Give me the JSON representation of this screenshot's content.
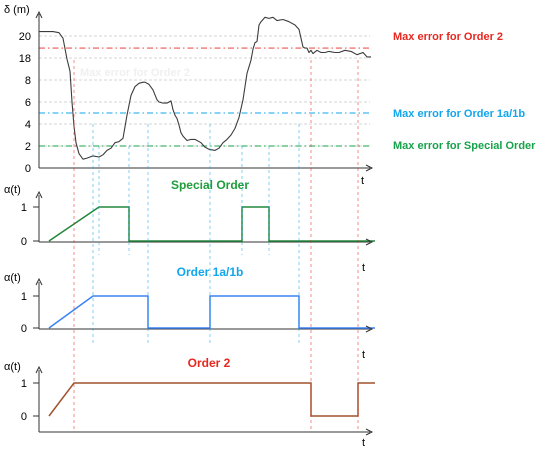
{
  "chart_data": [
    {
      "type": "line",
      "ylabel": "δ (m)",
      "xlabel": "t",
      "yticks": [
        0,
        2,
        4,
        6,
        8,
        18,
        20
      ],
      "ylim": [
        0,
        22
      ],
      "x": [
        0,
        14,
        20,
        24,
        28,
        31,
        33,
        35,
        37,
        40,
        44,
        48,
        54,
        60,
        64,
        68,
        72,
        76,
        80,
        84,
        88,
        92,
        96,
        100,
        104,
        106,
        110,
        114,
        118,
        120,
        124,
        128,
        132,
        134,
        136,
        138,
        140,
        142,
        144,
        148,
        152,
        156,
        162,
        166,
        170,
        176,
        180,
        184,
        188,
        192,
        196,
        200,
        204,
        208,
        212,
        214,
        216,
        218,
        220,
        222,
        226,
        230,
        234,
        238,
        244,
        250,
        256,
        260,
        262,
        264,
        266,
        268,
        270,
        272,
        274,
        278,
        282,
        286,
        290,
        296,
        300,
        306,
        312,
        318,
        324,
        328,
        332
      ],
      "y": [
        20.4,
        20.4,
        20.3,
        19.8,
        17.5,
        12.0,
        6.0,
        3.8,
        2.3,
        1.3,
        0.8,
        0.9,
        1.1,
        1.0,
        1.2,
        1.6,
        1.8,
        2.3,
        2.4,
        2.7,
        4.8,
        6.6,
        7.4,
        7.7,
        7.8,
        7.8,
        7.6,
        7.1,
        6.2,
        6.0,
        5.9,
        5.9,
        6.1,
        5.3,
        4.8,
        4.5,
        3.9,
        3.2,
        2.9,
        2.5,
        2.6,
        2.6,
        2.3,
        1.9,
        1.7,
        1.6,
        1.8,
        2.3,
        2.6,
        3.0,
        3.6,
        4.6,
        6.2,
        11.0,
        17.0,
        18.8,
        19.4,
        19.5,
        21.0,
        21.3,
        21.7,
        21.6,
        21.7,
        21.4,
        21.5,
        21.3,
        21.0,
        20.6,
        19.8,
        19.0,
        18.9,
        18.9,
        18.5,
        18.7,
        18.4,
        18.7,
        18.5,
        18.5,
        18.6,
        18.5,
        18.5,
        18.7,
        18.6,
        18.3,
        18.5,
        18.1,
        18.1
      ],
      "thresholds": [
        {
          "name": "Max error for Order 2",
          "value": 18.9,
          "color": "#e8271f"
        },
        {
          "name": "Max error for Order 1a/1b",
          "value": 5.0,
          "color": "#12a6ec"
        },
        {
          "name": "Max error for Special Order",
          "value": 2.0,
          "color": "#16a34a"
        }
      ],
      "faint_label": "Max error for Order 2"
    },
    {
      "type": "line",
      "title": "Special Order",
      "ylabel": "α(t)",
      "xlabel": "t",
      "yticks": [
        0,
        1
      ],
      "color": "#22873a",
      "steps": [
        [
          0,
          0
        ],
        [
          50,
          1
        ],
        [
          80,
          1
        ],
        [
          80,
          0
        ],
        [
          193,
          0
        ],
        [
          193,
          1
        ],
        [
          220,
          1
        ],
        [
          220,
          0
        ],
        [
          326,
          0
        ]
      ]
    },
    {
      "type": "line",
      "title": "Order 1a/1b",
      "ylabel": "α(t)",
      "xlabel": "t",
      "yticks": [
        0,
        1
      ],
      "color": "#3b82f6",
      "steps": [
        [
          0,
          0
        ],
        [
          44,
          1
        ],
        [
          99,
          1
        ],
        [
          99,
          0
        ],
        [
          161,
          0
        ],
        [
          161,
          1
        ],
        [
          250,
          1
        ],
        [
          250,
          0
        ],
        [
          326,
          0
        ]
      ]
    },
    {
      "type": "line",
      "title": "Order 2",
      "ylabel": "α(t)",
      "xlabel": "t",
      "yticks": [
        0,
        1
      ],
      "color": "#a0522d",
      "steps": [
        [
          0,
          0
        ],
        [
          25,
          1
        ],
        [
          262,
          1
        ],
        [
          262,
          0
        ],
        [
          309,
          0
        ],
        [
          309,
          1
        ],
        [
          326,
          1
        ]
      ]
    }
  ]
}
